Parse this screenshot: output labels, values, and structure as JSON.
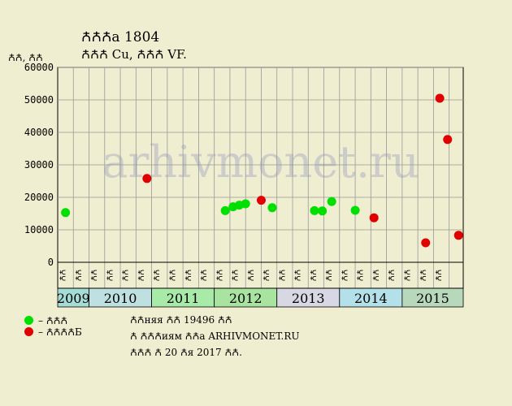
{
  "header": {
    "title": "ꙈꙈꙈа 1804",
    "subtitle": "ꙈꙈꙈ Cu, ꙈꙈꙈ VF.",
    "y_unit": "ꙈꙈ, ꙈꙈ"
  },
  "watermark": "arhivmonet.ru",
  "colors": {
    "background": "#f0eed0",
    "plot_bg": "#f0eed0",
    "grid": "#999999",
    "green_point": "#00e000",
    "red_point": "#e00000",
    "year_colors": [
      "#a6dcd6",
      "#bfe0e0",
      "#a8eaa8",
      "#a8e4a0",
      "#d8d8e4",
      "#b4e0ea",
      "#b8d8bc",
      "#d8d0a0"
    ]
  },
  "legend": [
    {
      "label": "– ꙈꙈꙈ",
      "color": "#00e000"
    },
    {
      "label": "– ꙈꙈꙈꙈБ",
      "color": "#e00000"
    }
  ],
  "info": {
    "line1": "ꙈꙈняя ꙈꙈ 19496 ꙈꙈ",
    "line2": "Ꙉ ꙈꙈꙈиям ꙈꙈа ARHIVMONET.RU",
    "line3": "ꙈꙈꙈ Ꙉ 20 Ꙉя 2017 ꙈꙈ."
  },
  "chart_data": {
    "type": "scatter",
    "ylim": [
      0,
      60000
    ],
    "yticks": [
      0,
      10000,
      20000,
      30000,
      40000,
      50000,
      60000
    ],
    "grid": true,
    "months": [
      "ꙈꙈ",
      "ꙈꙈ",
      "ꙈꙈ",
      "ꙈꙈ",
      "ꙈꙈ",
      "ꙈꙈ",
      "ꙈꙈ",
      "ꙈꙈ",
      "ꙈꙈ",
      "ꙈꙈ",
      "ꙈꙈ",
      "ꙈꙈ",
      "ꙈꙈ",
      "ꙈꙈ",
      "ꙈꙈ",
      "ꙈꙈ",
      "ꙈꙈ",
      "ꙈꙈ",
      "ꙈꙈ",
      "ꙈꙈ",
      "ꙈꙈ",
      "ꙈꙈ",
      "ꙈꙈ",
      "ꙈꙈ",
      "ꙈꙈ"
    ],
    "years": [
      {
        "label": "2009",
        "slots": 2
      },
      {
        "label": "2010",
        "slots": 4
      },
      {
        "label": "2011",
        "slots": 4
      },
      {
        "label": "2012",
        "slots": 4
      },
      {
        "label": "2013",
        "slots": 4
      },
      {
        "label": "2014",
        "slots": 4
      },
      {
        "label": "2015",
        "slots": 4
      },
      {
        "label": "",
        "slots": 1
      }
    ],
    "series": [
      {
        "name": "ꙈꙈꙈ",
        "color": "#00e000",
        "points": [
          [
            0.5,
            15300
          ],
          [
            10.7,
            15900
          ],
          [
            11.2,
            17100
          ],
          [
            11.6,
            17600
          ],
          [
            12.0,
            18000
          ],
          [
            13.7,
            16800
          ],
          [
            16.4,
            15900
          ],
          [
            16.9,
            15800
          ],
          [
            17.5,
            18700
          ],
          [
            19.0,
            16000
          ]
        ]
      },
      {
        "name": "ꙈꙈꙈꙈБ",
        "color": "#e00000",
        "points": [
          [
            5.7,
            25800
          ],
          [
            13.0,
            19100
          ],
          [
            20.2,
            13700
          ],
          [
            23.5,
            6000
          ],
          [
            24.4,
            50500
          ],
          [
            24.9,
            37800
          ],
          [
            25.6,
            8300
          ]
        ]
      }
    ]
  }
}
